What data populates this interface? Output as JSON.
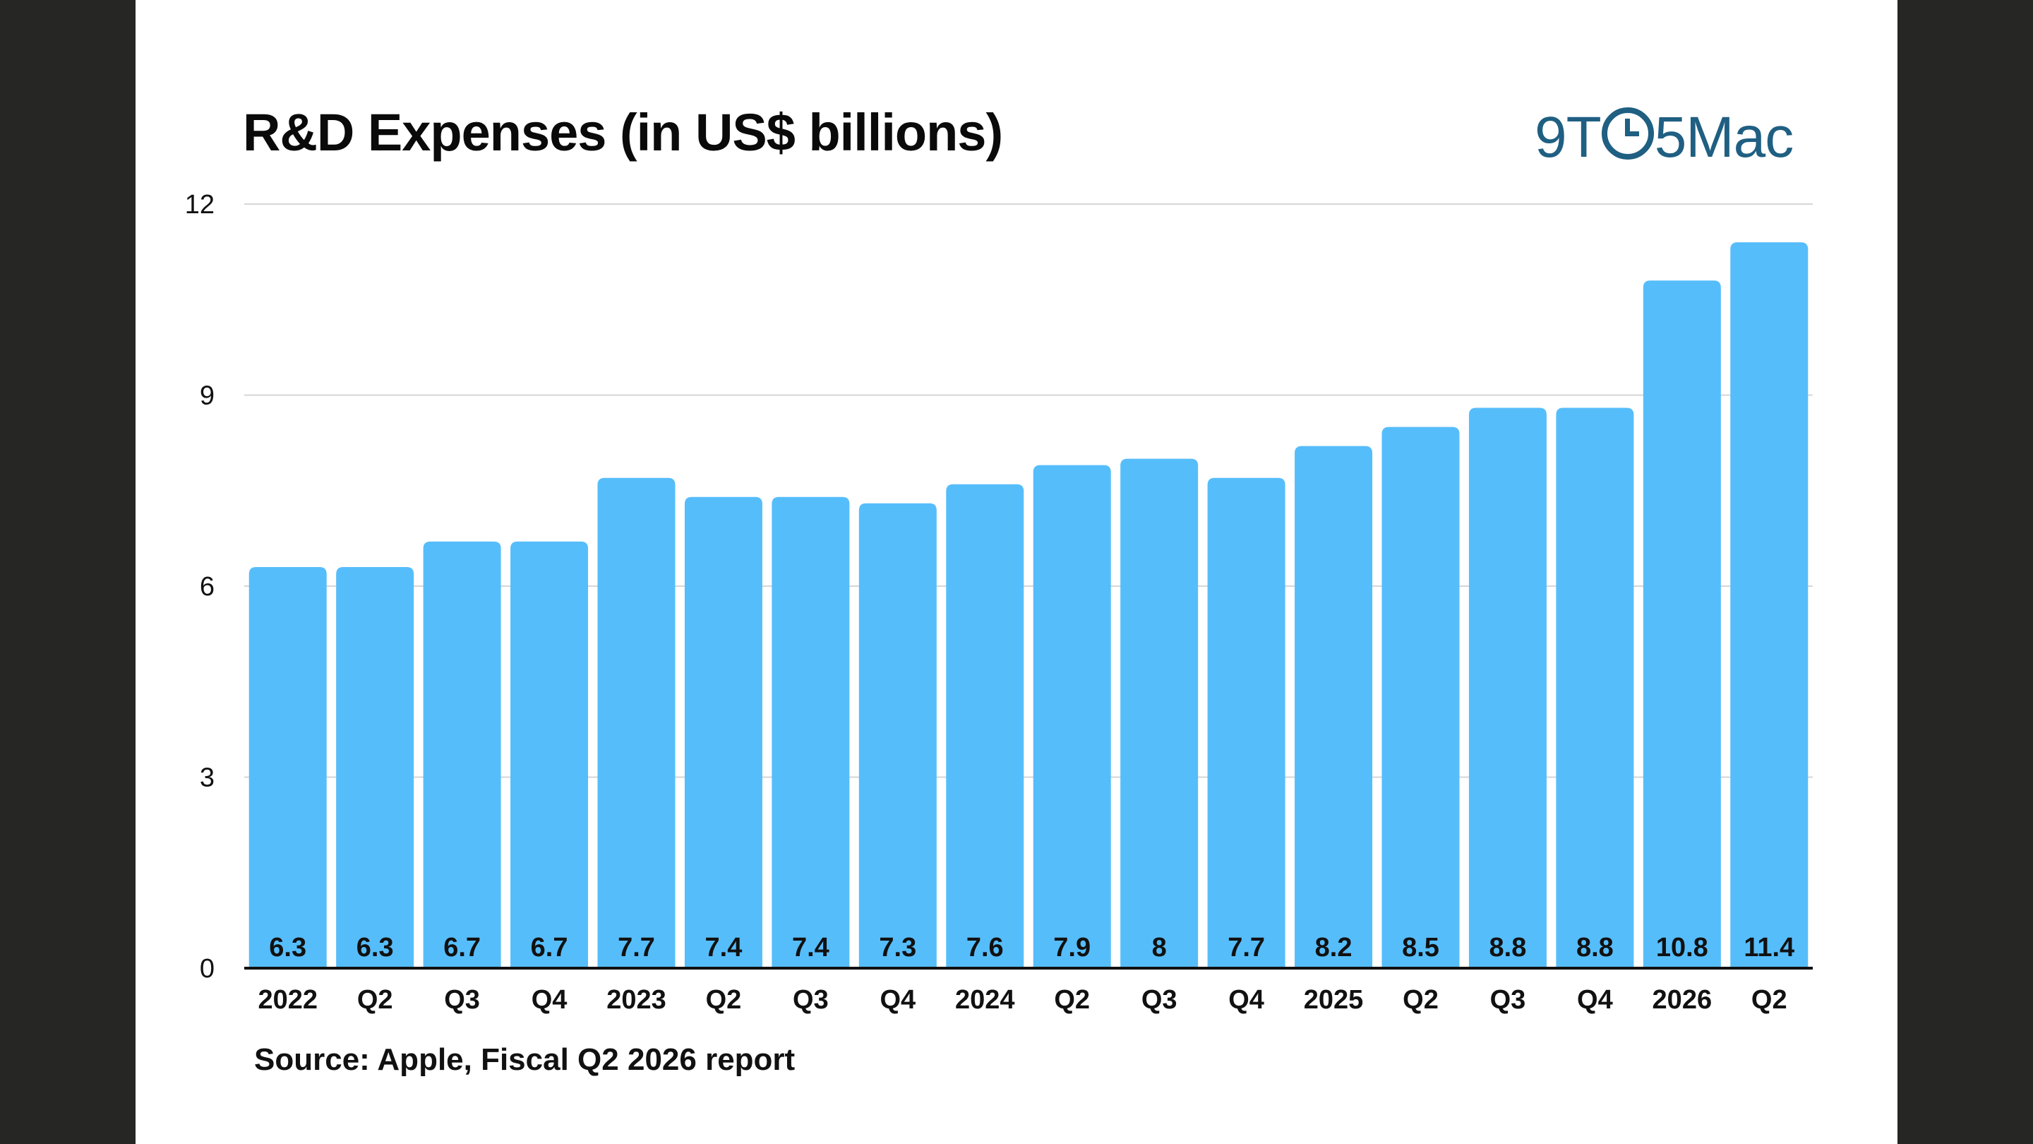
{
  "logo": {
    "prefix": "9T",
    "icon": "clock-icon",
    "suffix": "5Mac"
  },
  "colors": {
    "bar": "#56bdfb",
    "axis": "#111111",
    "grid": "#d6d6d6",
    "logo": "#1f5f82"
  },
  "chart_data": {
    "type": "bar",
    "title": "R&D Expenses (in US$ billions)",
    "xlabel": "",
    "ylabel": "",
    "ylim": [
      0,
      12
    ],
    "yticks": [
      0,
      3,
      6,
      9,
      12
    ],
    "grid": true,
    "legend": "none",
    "categories": [
      "2022",
      "Q2",
      "Q3",
      "Q4",
      "2023",
      "Q2",
      "Q3",
      "Q4",
      "2024",
      "Q2",
      "Q3",
      "Q4",
      "2025",
      "Q2",
      "Q3",
      "Q4",
      "2026",
      "Q2"
    ],
    "values": [
      6.3,
      6.3,
      6.7,
      6.7,
      7.7,
      7.4,
      7.4,
      7.3,
      7.6,
      7.9,
      8,
      7.7,
      8.2,
      8.5,
      8.8,
      8.8,
      10.8,
      11.4
    ]
  },
  "source": "Source: Apple, Fiscal Q2 2026 report"
}
